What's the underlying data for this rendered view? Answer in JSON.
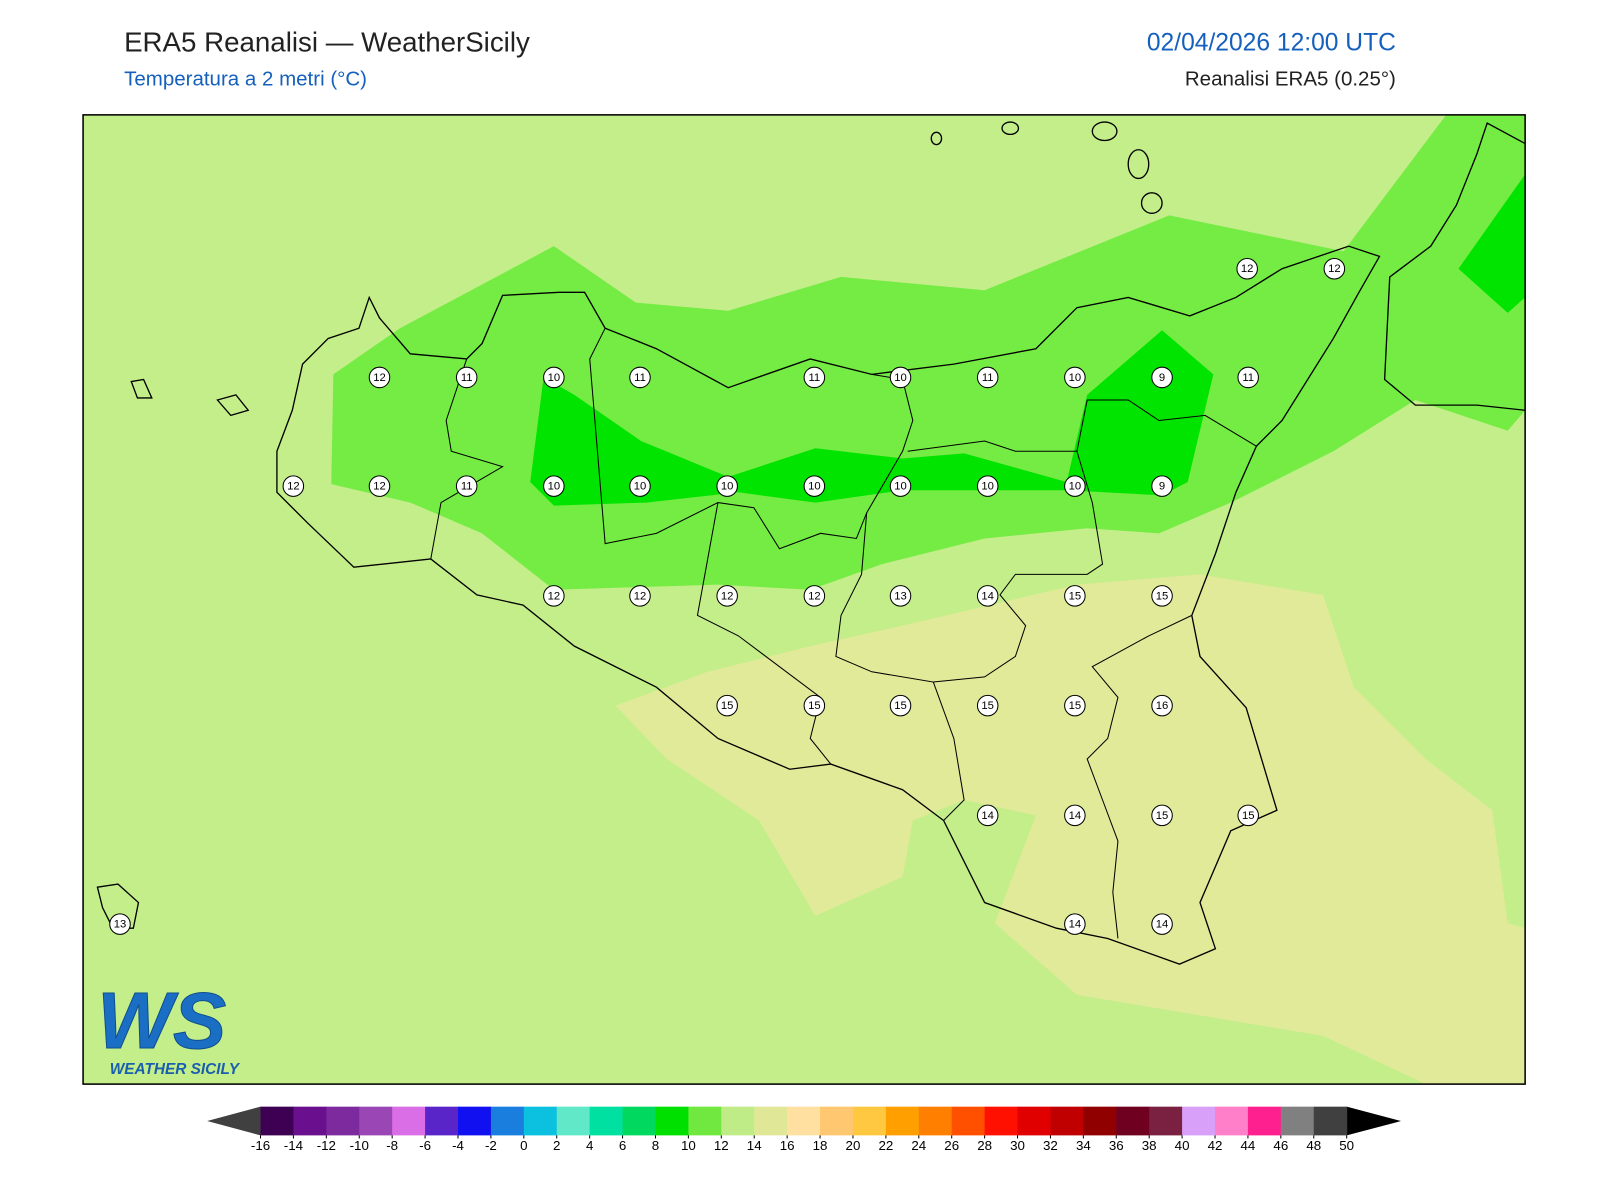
{
  "header": {
    "title": "ERA5 Reanalisi — WeatherSicily",
    "subtitle": "Temperatura a 2 metri (°C)",
    "date": "02/04/2026 12:00 UTC",
    "source": "Reanalisi ERA5 (0.25°)"
  },
  "stations": [
    12,
    12,
    12,
    11,
    10,
    11,
    11,
    10,
    11,
    10,
    9,
    11,
    12,
    12,
    11,
    10,
    10,
    10,
    10,
    10,
    10,
    10,
    9,
    12,
    12,
    12,
    12,
    13,
    14,
    15,
    15,
    15,
    15,
    15,
    15,
    15,
    16,
    14,
    14,
    15,
    15,
    13,
    14,
    14
  ],
  "logo": {
    "mark": "WS",
    "name": "WEATHER SICILY"
  },
  "colorbar": {
    "ticks": [
      -16,
      -14,
      -12,
      -10,
      -8,
      -6,
      -4,
      -2,
      0,
      2,
      4,
      6,
      8,
      10,
      12,
      14,
      16,
      18,
      20,
      22,
      24,
      26,
      28,
      30,
      32,
      34,
      36,
      38,
      40,
      42,
      44,
      46,
      48,
      50
    ],
    "colors": [
      "#3d0052",
      "#6a0f8e",
      "#7d2a9e",
      "#9a47b5",
      "#d96ee6",
      "#5a25c8",
      "#1010f0",
      "#1a7ede",
      "#0cc0e0",
      "#60e8c8",
      "#00e0a0",
      "#00d860",
      "#00e000",
      "#70e840",
      "#c0ec88",
      "#e0e898",
      "#ffe0a0",
      "#ffc870",
      "#ffc840",
      "#ffa000",
      "#ff8000",
      "#ff5000",
      "#ff1000",
      "#e00000",
      "#c00000",
      "#900000",
      "#700020",
      "#7a2040",
      "#d8a0f8",
      "#ff80c8",
      "#ff2090",
      "#808080",
      "#404040"
    ],
    "under": "#404040",
    "over": "#000000"
  }
}
